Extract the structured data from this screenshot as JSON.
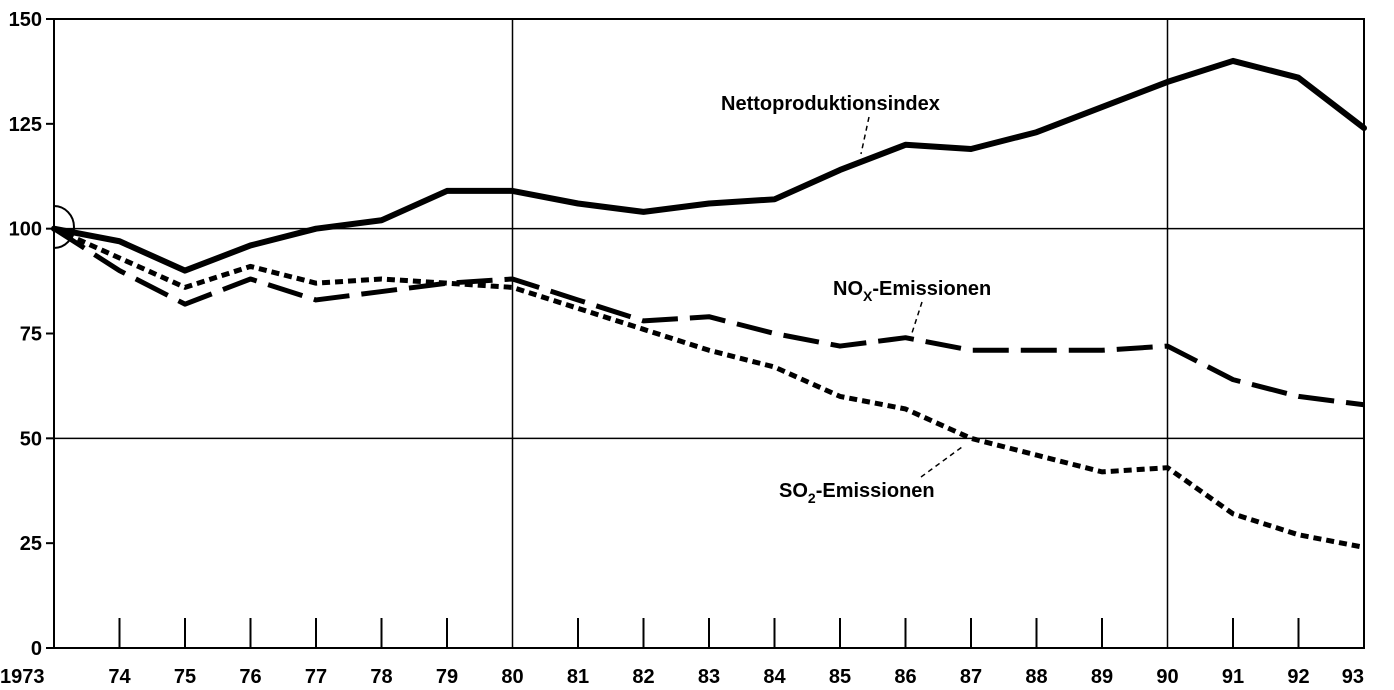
{
  "chart_data": {
    "type": "line",
    "x": [
      "1973",
      "74",
      "75",
      "76",
      "77",
      "78",
      "79",
      "80",
      "81",
      "82",
      "83",
      "84",
      "85",
      "86",
      "87",
      "88",
      "89",
      "90",
      "91",
      "92",
      "93"
    ],
    "ylim": [
      0,
      150
    ],
    "yticks": [
      "0",
      "25",
      "50",
      "75",
      "100",
      "125",
      "150"
    ],
    "grid": "horizontal lines at 50 and 100; vertical lines at 80 and 90",
    "series": [
      {
        "name": "Nettoproduktionsindex",
        "style": "solid",
        "values": [
          100,
          97,
          90,
          96,
          100,
          102,
          109,
          109,
          106,
          104,
          106,
          107,
          114,
          120,
          119,
          123,
          129,
          135,
          140,
          136,
          124
        ]
      },
      {
        "name": "NOX-Emissionen",
        "style": "long-dash",
        "values": [
          100,
          90,
          82,
          88,
          83,
          85,
          87,
          88,
          83,
          78,
          79,
          75,
          72,
          74,
          71,
          71,
          71,
          72,
          64,
          60,
          58
        ]
      },
      {
        "name": "SO2-Emissionen",
        "style": "dotted",
        "values": [
          100,
          93,
          86,
          91,
          87,
          88,
          87,
          86,
          81,
          76,
          71,
          67,
          60,
          57,
          50,
          46,
          42,
          43,
          32,
          27,
          24
        ]
      }
    ],
    "annotations": {
      "netto": "Nettoproduktionsindex",
      "nox_main": "NO",
      "nox_sub": "X",
      "nox_rest": "-Emissionen",
      "so2_main": "SO",
      "so2_sub": "2",
      "so2_rest": "-Emissionen"
    }
  }
}
